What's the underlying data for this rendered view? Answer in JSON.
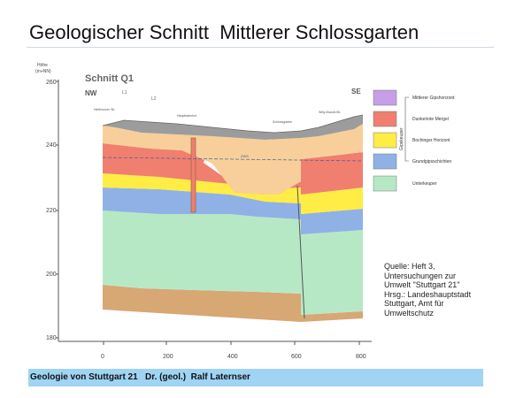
{
  "slide": {
    "title": "Geologischer Schnitt  Mittlerer Schlossgarten"
  },
  "figure": {
    "title": "Schnitt Q1",
    "direction_left": "NW",
    "direction_right": "SE",
    "y_axis_label_1": "Höhe",
    "y_axis_label_2": "(m+NN)",
    "y_ticks": [
      "260",
      "240",
      "220",
      "200",
      "180"
    ],
    "x_ticks": [
      "0",
      "200",
      "400",
      "600",
      "800"
    ],
    "markers": [
      "L1",
      "L2"
    ],
    "site_labels": [
      "Heilbronner Str.",
      "Hauptbahnhof",
      "Schlossgarten",
      "Willy-Brandt-Str."
    ],
    "water_level_label": "ZWS"
  },
  "legend": {
    "group_label": "Gipskeuper",
    "items": [
      {
        "label": "Mittlerer Gipshorizont",
        "color": "#c79ee8"
      },
      {
        "label": "Dunkelrote Mergel",
        "color": "#f07f6f"
      },
      {
        "label": "Bochinger Horizont",
        "color": "#ffed45"
      },
      {
        "label": "Grundgipsschichten",
        "color": "#8fb1e6"
      },
      {
        "label": "Unterkeuper",
        "color": "#b7e8c6"
      }
    ]
  },
  "source": {
    "lines": [
      "Quelle: Heft 3,",
      "Untersuchungen zur",
      "Umwelt \"Stuttgart 21\"",
      "Hrsg.: Landeshauptstadt",
      "Stuttgart, Amt für",
      "Umweltschutz"
    ]
  },
  "footer": {
    "text": "Geologie von Stuttgart 21   Dr. (geol.)  Ralf Laternser"
  },
  "colors": {
    "fill": "#f8cf9a",
    "mergel": "#f07f6f",
    "bochingen": "#ffed45",
    "grund": "#8fb1e6",
    "unterkeuper": "#b7e8c6",
    "base": "#d7a774",
    "surface": "#9c9c9c"
  }
}
